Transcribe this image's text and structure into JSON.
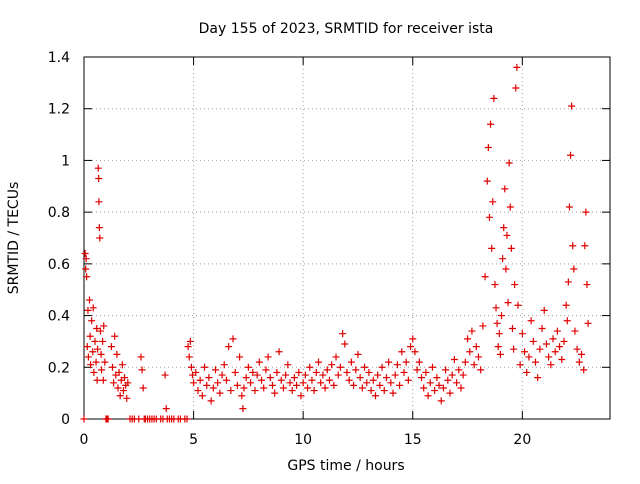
{
  "chart_data": {
    "type": "scatter",
    "title": "Day 155 of 2023, SRMTID for receiver ista",
    "xlabel": "GPS time / hours",
    "ylabel": "SRMTID / TECUs",
    "xlim": [
      0,
      24
    ],
    "ylim": [
      0,
      1.4
    ],
    "xticks": [
      0,
      5,
      10,
      15,
      20
    ],
    "xtick_labels": [
      "0",
      "5",
      "10",
      "15",
      "20"
    ],
    "yticks": [
      0,
      0.2,
      0.4,
      0.6,
      0.8,
      1,
      1.2,
      1.4
    ],
    "ytick_labels": [
      "0",
      "0.2",
      "0.4",
      "0.6",
      "0.8",
      "1",
      "1.2",
      "1.4"
    ],
    "grid": true,
    "marker": "+",
    "color": "#e00000",
    "series": [
      {
        "name": "SRMTID",
        "points": [
          [
            0.0,
            0.0
          ],
          [
            0.05,
            0.64
          ],
          [
            0.08,
            0.58
          ],
          [
            0.1,
            0.62
          ],
          [
            0.12,
            0.55
          ],
          [
            0.15,
            0.28
          ],
          [
            0.18,
            0.42
          ],
          [
            0.2,
            0.24
          ],
          [
            0.25,
            0.46
          ],
          [
            0.28,
            0.32
          ],
          [
            0.3,
            0.21
          ],
          [
            0.35,
            0.38
          ],
          [
            0.4,
            0.26
          ],
          [
            0.42,
            0.43
          ],
          [
            0.45,
            0.18
          ],
          [
            0.5,
            0.3
          ],
          [
            0.55,
            0.22
          ],
          [
            0.58,
            0.35
          ],
          [
            0.6,
            0.15
          ],
          [
            0.62,
            0.27
          ],
          [
            0.65,
            0.97
          ],
          [
            0.67,
            0.93
          ],
          [
            0.68,
            0.84
          ],
          [
            0.7,
            0.74
          ],
          [
            0.72,
            0.7
          ],
          [
            0.75,
            0.34
          ],
          [
            0.78,
            0.25
          ],
          [
            0.8,
            0.19
          ],
          [
            0.85,
            0.3
          ],
          [
            0.88,
            0.15
          ],
          [
            0.9,
            0.36
          ],
          [
            0.95,
            0.22
          ],
          [
            1.0,
            0.0
          ],
          [
            1.05,
            0.0
          ],
          [
            1.1,
            0.0
          ],
          [
            1.25,
            0.28
          ],
          [
            1.3,
            0.2
          ],
          [
            1.35,
            0.14
          ],
          [
            1.4,
            0.32
          ],
          [
            1.45,
            0.17
          ],
          [
            1.5,
            0.25
          ],
          [
            1.55,
            0.12
          ],
          [
            1.6,
            0.18
          ],
          [
            1.65,
            0.09
          ],
          [
            1.7,
            0.15
          ],
          [
            1.75,
            0.21
          ],
          [
            1.8,
            0.11
          ],
          [
            1.85,
            0.16
          ],
          [
            1.9,
            0.13
          ],
          [
            1.95,
            0.08
          ],
          [
            2.0,
            0.14
          ],
          [
            2.1,
            0.0
          ],
          [
            2.2,
            0.0
          ],
          [
            2.3,
            0.0
          ],
          [
            2.5,
            0.0
          ],
          [
            2.6,
            0.24
          ],
          [
            2.65,
            0.19
          ],
          [
            2.7,
            0.12
          ],
          [
            2.75,
            0.0
          ],
          [
            2.8,
            0.0
          ],
          [
            2.9,
            0.0
          ],
          [
            3.0,
            0.0
          ],
          [
            3.1,
            0.0
          ],
          [
            3.2,
            0.0
          ],
          [
            3.3,
            0.0
          ],
          [
            3.5,
            0.0
          ],
          [
            3.6,
            0.0
          ],
          [
            3.7,
            0.17
          ],
          [
            3.75,
            0.04
          ],
          [
            3.8,
            0.0
          ],
          [
            3.9,
            0.0
          ],
          [
            4.0,
            0.0
          ],
          [
            4.1,
            0.0
          ],
          [
            4.3,
            0.0
          ],
          [
            4.4,
            0.0
          ],
          [
            4.6,
            0.0
          ],
          [
            4.7,
            0.0
          ],
          [
            4.75,
            0.28
          ],
          [
            4.8,
            0.24
          ],
          [
            4.85,
            0.3
          ],
          [
            4.9,
            0.2
          ],
          [
            4.95,
            0.17
          ],
          [
            5.0,
            0.14
          ],
          [
            5.1,
            0.18
          ],
          [
            5.2,
            0.11
          ],
          [
            5.3,
            0.15
          ],
          [
            5.4,
            0.09
          ],
          [
            5.5,
            0.2
          ],
          [
            5.6,
            0.13
          ],
          [
            5.7,
            0.16
          ],
          [
            5.8,
            0.07
          ],
          [
            5.9,
            0.12
          ],
          [
            6.0,
            0.19
          ],
          [
            6.1,
            0.14
          ],
          [
            6.2,
            0.1
          ],
          [
            6.3,
            0.17
          ],
          [
            6.4,
            0.21
          ],
          [
            6.5,
            0.15
          ],
          [
            6.6,
            0.28
          ],
          [
            6.7,
            0.11
          ],
          [
            6.8,
            0.31
          ],
          [
            6.9,
            0.18
          ],
          [
            7.0,
            0.13
          ],
          [
            7.1,
            0.24
          ],
          [
            7.2,
            0.09
          ],
          [
            7.25,
            0.04
          ],
          [
            7.3,
            0.12
          ],
          [
            7.4,
            0.16
          ],
          [
            7.5,
            0.2
          ],
          [
            7.6,
            0.14
          ],
          [
            7.7,
            0.18
          ],
          [
            7.8,
            0.11
          ],
          [
            7.9,
            0.17
          ],
          [
            8.0,
            0.22
          ],
          [
            8.1,
            0.15
          ],
          [
            8.2,
            0.12
          ],
          [
            8.3,
            0.19
          ],
          [
            8.4,
            0.24
          ],
          [
            8.5,
            0.16
          ],
          [
            8.6,
            0.13
          ],
          [
            8.7,
            0.1
          ],
          [
            8.8,
            0.18
          ],
          [
            8.9,
            0.26
          ],
          [
            9.0,
            0.15
          ],
          [
            9.1,
            0.12
          ],
          [
            9.2,
            0.17
          ],
          [
            9.3,
            0.21
          ],
          [
            9.4,
            0.14
          ],
          [
            9.5,
            0.11
          ],
          [
            9.6,
            0.16
          ],
          [
            9.7,
            0.13
          ],
          [
            9.8,
            0.18
          ],
          [
            9.9,
            0.09
          ],
          [
            10.0,
            0.14
          ],
          [
            10.1,
            0.17
          ],
          [
            10.2,
            0.12
          ],
          [
            10.3,
            0.2
          ],
          [
            10.4,
            0.15
          ],
          [
            10.5,
            0.11
          ],
          [
            10.6,
            0.18
          ],
          [
            10.7,
            0.22
          ],
          [
            10.8,
            0.14
          ],
          [
            10.9,
            0.17
          ],
          [
            11.0,
            0.12
          ],
          [
            11.1,
            0.19
          ],
          [
            11.2,
            0.15
          ],
          [
            11.3,
            0.21
          ],
          [
            11.4,
            0.13
          ],
          [
            11.5,
            0.24
          ],
          [
            11.6,
            0.17
          ],
          [
            11.7,
            0.2
          ],
          [
            11.8,
            0.33
          ],
          [
            11.9,
            0.29
          ],
          [
            12.0,
            0.18
          ],
          [
            12.1,
            0.15
          ],
          [
            12.2,
            0.22
          ],
          [
            12.3,
            0.13
          ],
          [
            12.4,
            0.19
          ],
          [
            12.5,
            0.25
          ],
          [
            12.6,
            0.16
          ],
          [
            12.7,
            0.12
          ],
          [
            12.8,
            0.2
          ],
          [
            12.9,
            0.14
          ],
          [
            13.0,
            0.18
          ],
          [
            13.1,
            0.11
          ],
          [
            13.2,
            0.15
          ],
          [
            13.3,
            0.09
          ],
          [
            13.4,
            0.17
          ],
          [
            13.5,
            0.13
          ],
          [
            13.6,
            0.2
          ],
          [
            13.7,
            0.11
          ],
          [
            13.8,
            0.16
          ],
          [
            13.9,
            0.22
          ],
          [
            14.0,
            0.14
          ],
          [
            14.1,
            0.1
          ],
          [
            14.2,
            0.17
          ],
          [
            14.3,
            0.21
          ],
          [
            14.4,
            0.13
          ],
          [
            14.5,
            0.26
          ],
          [
            14.6,
            0.18
          ],
          [
            14.7,
            0.22
          ],
          [
            14.8,
            0.15
          ],
          [
            14.9,
            0.28
          ],
          [
            15.0,
            0.31
          ],
          [
            15.1,
            0.26
          ],
          [
            15.2,
            0.19
          ],
          [
            15.3,
            0.22
          ],
          [
            15.4,
            0.16
          ],
          [
            15.5,
            0.12
          ],
          [
            15.6,
            0.18
          ],
          [
            15.7,
            0.09
          ],
          [
            15.8,
            0.14
          ],
          [
            15.9,
            0.2
          ],
          [
            16.0,
            0.11
          ],
          [
            16.1,
            0.16
          ],
          [
            16.2,
            0.13
          ],
          [
            16.3,
            0.07
          ],
          [
            16.4,
            0.12
          ],
          [
            16.5,
            0.19
          ],
          [
            16.6,
            0.15
          ],
          [
            16.7,
            0.1
          ],
          [
            16.8,
            0.17
          ],
          [
            16.9,
            0.23
          ],
          [
            17.0,
            0.14
          ],
          [
            17.1,
            0.19
          ],
          [
            17.2,
            0.12
          ],
          [
            17.3,
            0.17
          ],
          [
            17.4,
            0.22
          ],
          [
            17.5,
            0.31
          ],
          [
            17.6,
            0.26
          ],
          [
            17.7,
            0.34
          ],
          [
            17.8,
            0.21
          ],
          [
            17.9,
            0.28
          ],
          [
            18.0,
            0.24
          ],
          [
            18.1,
            0.19
          ],
          [
            18.2,
            0.36
          ],
          [
            18.3,
            0.55
          ],
          [
            18.4,
            0.92
          ],
          [
            18.45,
            1.05
          ],
          [
            18.5,
            0.78
          ],
          [
            18.55,
            1.14
          ],
          [
            18.6,
            0.66
          ],
          [
            18.65,
            0.84
          ],
          [
            18.7,
            1.24
          ],
          [
            18.75,
            0.52
          ],
          [
            18.8,
            0.43
          ],
          [
            18.85,
            0.37
          ],
          [
            18.9,
            0.28
          ],
          [
            18.95,
            0.33
          ],
          [
            19.0,
            0.25
          ],
          [
            19.05,
            0.4
          ],
          [
            19.1,
            0.62
          ],
          [
            19.15,
            0.74
          ],
          [
            19.2,
            0.89
          ],
          [
            19.25,
            0.58
          ],
          [
            19.3,
            0.71
          ],
          [
            19.35,
            0.45
          ],
          [
            19.4,
            0.99
          ],
          [
            19.45,
            0.82
          ],
          [
            19.5,
            0.66
          ],
          [
            19.55,
            0.35
          ],
          [
            19.6,
            0.27
          ],
          [
            19.65,
            0.52
          ],
          [
            19.7,
            1.28
          ],
          [
            19.75,
            1.36
          ],
          [
            19.8,
            0.44
          ],
          [
            19.9,
            0.21
          ],
          [
            20.0,
            0.33
          ],
          [
            20.1,
            0.26
          ],
          [
            20.2,
            0.18
          ],
          [
            20.3,
            0.24
          ],
          [
            20.4,
            0.38
          ],
          [
            20.5,
            0.3
          ],
          [
            20.6,
            0.22
          ],
          [
            20.7,
            0.16
          ],
          [
            20.8,
            0.27
          ],
          [
            20.9,
            0.35
          ],
          [
            21.0,
            0.42
          ],
          [
            21.1,
            0.29
          ],
          [
            21.2,
            0.24
          ],
          [
            21.3,
            0.21
          ],
          [
            21.4,
            0.31
          ],
          [
            21.5,
            0.26
          ],
          [
            21.6,
            0.34
          ],
          [
            21.7,
            0.28
          ],
          [
            21.8,
            0.23
          ],
          [
            21.9,
            0.3
          ],
          [
            22.0,
            0.44
          ],
          [
            22.05,
            0.38
          ],
          [
            22.1,
            0.53
          ],
          [
            22.15,
            0.82
          ],
          [
            22.2,
            1.02
          ],
          [
            22.25,
            1.21
          ],
          [
            22.3,
            0.67
          ],
          [
            22.35,
            0.58
          ],
          [
            22.4,
            0.34
          ],
          [
            22.5,
            0.27
          ],
          [
            22.6,
            0.22
          ],
          [
            22.7,
            0.25
          ],
          [
            22.8,
            0.19
          ],
          [
            22.85,
            0.67
          ],
          [
            22.9,
            0.8
          ],
          [
            22.95,
            0.52
          ],
          [
            23.0,
            0.37
          ]
        ]
      }
    ]
  }
}
